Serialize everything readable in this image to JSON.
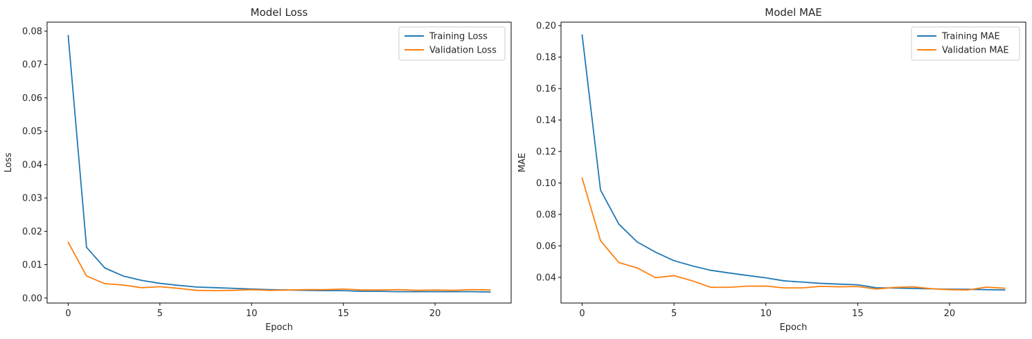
{
  "chart_data": [
    {
      "type": "line",
      "title": "Model Loss",
      "xlabel": "Epoch",
      "ylabel": "Loss",
      "xlim": [
        -1.15,
        24.15
      ],
      "ylim": [
        -0.0015,
        0.0827
      ],
      "xticks": [
        0,
        5,
        10,
        15,
        20
      ],
      "xtick_labels": [
        "0",
        "5",
        "10",
        "15",
        "20"
      ],
      "yticks": [
        0.0,
        0.01,
        0.02,
        0.03,
        0.04,
        0.05,
        0.06,
        0.07,
        0.08
      ],
      "ytick_labels": [
        "0.00",
        "0.01",
        "0.02",
        "0.03",
        "0.04",
        "0.05",
        "0.06",
        "0.07",
        "0.08"
      ],
      "grid": false,
      "legend": "top-right",
      "x": [
        0,
        1,
        2,
        3,
        4,
        5,
        6,
        7,
        8,
        9,
        10,
        11,
        12,
        13,
        14,
        15,
        16,
        17,
        18,
        19,
        20,
        21,
        22,
        23
      ],
      "series": [
        {
          "name": "Training Loss",
          "color": "#1f77b4",
          "values": [
            0.0787,
            0.0152,
            0.009,
            0.0066,
            0.0053,
            0.0044,
            0.0038,
            0.0033,
            0.0031,
            0.0029,
            0.0027,
            0.0025,
            0.0024,
            0.0023,
            0.0022,
            0.0022,
            0.002,
            0.002,
            0.0019,
            0.0019,
            0.0019,
            0.0019,
            0.0019,
            0.0018
          ]
        },
        {
          "name": "Validation Loss",
          "color": "#ff7f0e",
          "values": [
            0.0167,
            0.0066,
            0.0043,
            0.0039,
            0.0031,
            0.0034,
            0.0029,
            0.0023,
            0.0022,
            0.0023,
            0.0025,
            0.0023,
            0.0024,
            0.0025,
            0.0025,
            0.0027,
            0.0024,
            0.0024,
            0.0025,
            0.0023,
            0.0024,
            0.0023,
            0.0025,
            0.0024
          ]
        }
      ]
    },
    {
      "type": "line",
      "title": "Model MAE",
      "xlabel": "Epoch",
      "ylabel": "MAE",
      "xlim": [
        -1.15,
        24.15
      ],
      "ylim": [
        0.0237,
        0.2022
      ],
      "xticks": [
        0,
        5,
        10,
        15,
        20
      ],
      "xtick_labels": [
        "0",
        "5",
        "10",
        "15",
        "20"
      ],
      "yticks": [
        0.04,
        0.06,
        0.08,
        0.1,
        0.12,
        0.14,
        0.16,
        0.18,
        0.2
      ],
      "ytick_labels": [
        "0.04",
        "0.06",
        "0.08",
        "0.10",
        "0.12",
        "0.14",
        "0.16",
        "0.18",
        "0.20"
      ],
      "grid": false,
      "legend": "top-right",
      "x": [
        0,
        1,
        2,
        3,
        4,
        5,
        6,
        7,
        8,
        9,
        10,
        11,
        12,
        13,
        14,
        15,
        16,
        17,
        18,
        19,
        20,
        21,
        22,
        23
      ],
      "series": [
        {
          "name": "Training MAE",
          "color": "#1f77b4",
          "values": [
            0.194,
            0.0955,
            0.0738,
            0.0625,
            0.056,
            0.0506,
            0.0473,
            0.0445,
            0.0428,
            0.0412,
            0.0397,
            0.0378,
            0.037,
            0.0362,
            0.0357,
            0.0353,
            0.0334,
            0.0332,
            0.033,
            0.0327,
            0.0325,
            0.0324,
            0.0322,
            0.032
          ]
        },
        {
          "name": "Validation MAE",
          "color": "#ff7f0e",
          "values": [
            0.103,
            0.0633,
            0.0494,
            0.046,
            0.0398,
            0.0411,
            0.0378,
            0.0337,
            0.0337,
            0.0344,
            0.0345,
            0.0333,
            0.0333,
            0.0343,
            0.034,
            0.0342,
            0.0326,
            0.0336,
            0.034,
            0.0328,
            0.0322,
            0.032,
            0.0338,
            0.0331
          ]
        }
      ]
    }
  ]
}
